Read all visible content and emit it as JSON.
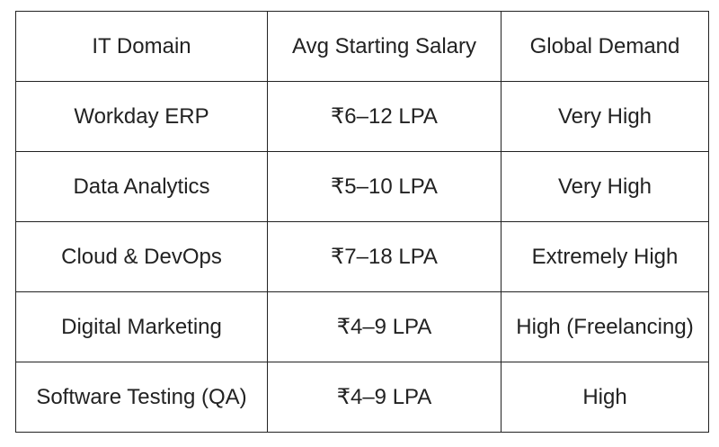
{
  "table": {
    "header": [
      "IT Domain",
      "Avg Starting Salary",
      "Global Demand"
    ],
    "rows": [
      [
        "Workday ERP",
        "₹6–12 LPA",
        "Very High"
      ],
      [
        "Data Analytics",
        "₹5–10 LPA",
        "Very High"
      ],
      [
        "Cloud & DevOps",
        "₹7–18 LPA",
        "Extremely High"
      ],
      [
        "Digital Marketing",
        "₹4–9 LPA",
        "High (Freelancing)"
      ],
      [
        "Software Testing (QA)",
        "₹4–9 LPA",
        "High"
      ]
    ]
  }
}
